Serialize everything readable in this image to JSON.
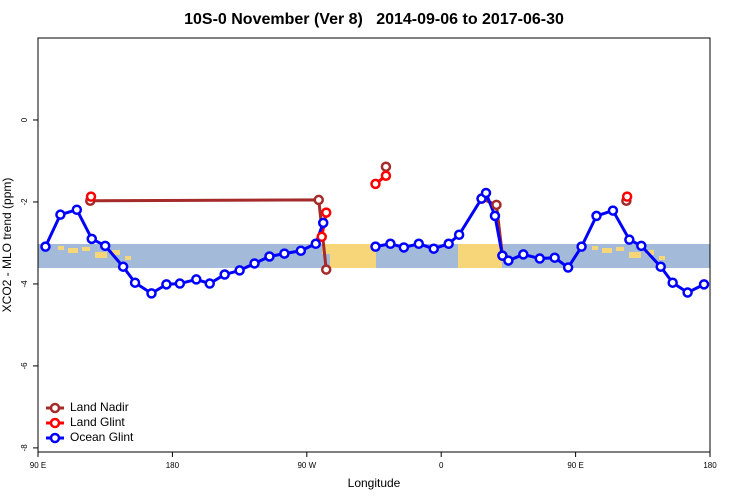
{
  "chart_data": {
    "type": "line",
    "title": "10S-0 November (Ver 8)   2014-09-06 to 2017-06-30",
    "x_label": "Longitude",
    "y_label": "XCO2 - MLO trend (ppm)",
    "xlim": [
      90,
      540
    ],
    "ylim": [
      -8.1,
      2
    ],
    "xticks": [
      {
        "value": 90,
        "label": "90 E"
      },
      180,
      {
        "value": 270,
        "label": "90 W"
      },
      {
        "value": 360,
        "label": "0"
      },
      {
        "value": 450,
        "label": "90 E"
      },
      {
        "value": 540,
        "label": "180"
      }
    ],
    "yticks": [
      0,
      -2,
      -4,
      -6,
      -8
    ],
    "legend": "bottom-left",
    "series": [
      {
        "name": "Land Nadir",
        "color": "#a52a2a",
        "x": [
          125,
          278,
          283,
          null,
          323,
          null,
          387,
          397,
          401,
          null,
          484
        ],
        "values": [
          -1.97,
          -1.95,
          -3.65,
          null,
          -1.14,
          null,
          -1.92,
          -2.07,
          -3.31,
          null,
          -1.97
        ]
      },
      {
        "name": "Land Glint",
        "color": "#ff0000",
        "x": [
          125.5,
          null,
          280,
          283,
          null,
          316,
          323,
          null,
          484.5
        ],
        "values": [
          -1.87,
          null,
          -2.85,
          -2.26,
          null,
          -1.56,
          -1.36,
          null,
          -1.87
        ]
      },
      {
        "name": "Ocean Glint",
        "color": "#0000ff",
        "x": [
          95,
          105,
          116,
          126,
          135,
          147,
          155,
          166,
          176,
          185,
          196,
          205,
          215,
          225,
          235,
          245,
          255,
          266,
          276,
          281,
          null,
          316,
          326,
          335,
          345,
          355,
          365,
          372,
          387,
          390,
          396,
          401,
          405,
          415,
          426,
          436,
          445,
          454,
          464,
          475,
          486,
          494,
          507,
          515,
          525,
          536
        ],
        "values": [
          -3.09,
          -2.31,
          -2.19,
          -2.9,
          -3.07,
          -3.58,
          -3.97,
          -4.23,
          -4.01,
          -3.99,
          -3.89,
          -3.99,
          -3.77,
          -3.67,
          -3.5,
          -3.33,
          -3.26,
          -3.19,
          -3.02,
          -2.51,
          null,
          -3.09,
          -3.02,
          -3.11,
          -3.02,
          -3.14,
          -3.02,
          -2.8,
          -1.92,
          -1.78,
          -2.34,
          -3.31,
          -3.43,
          -3.28,
          -3.38,
          -3.36,
          -3.6,
          -3.09,
          -2.34,
          -2.21,
          -2.92,
          -3.07,
          -3.58,
          -3.97,
          -4.21,
          -4.01
        ]
      }
    ]
  }
}
